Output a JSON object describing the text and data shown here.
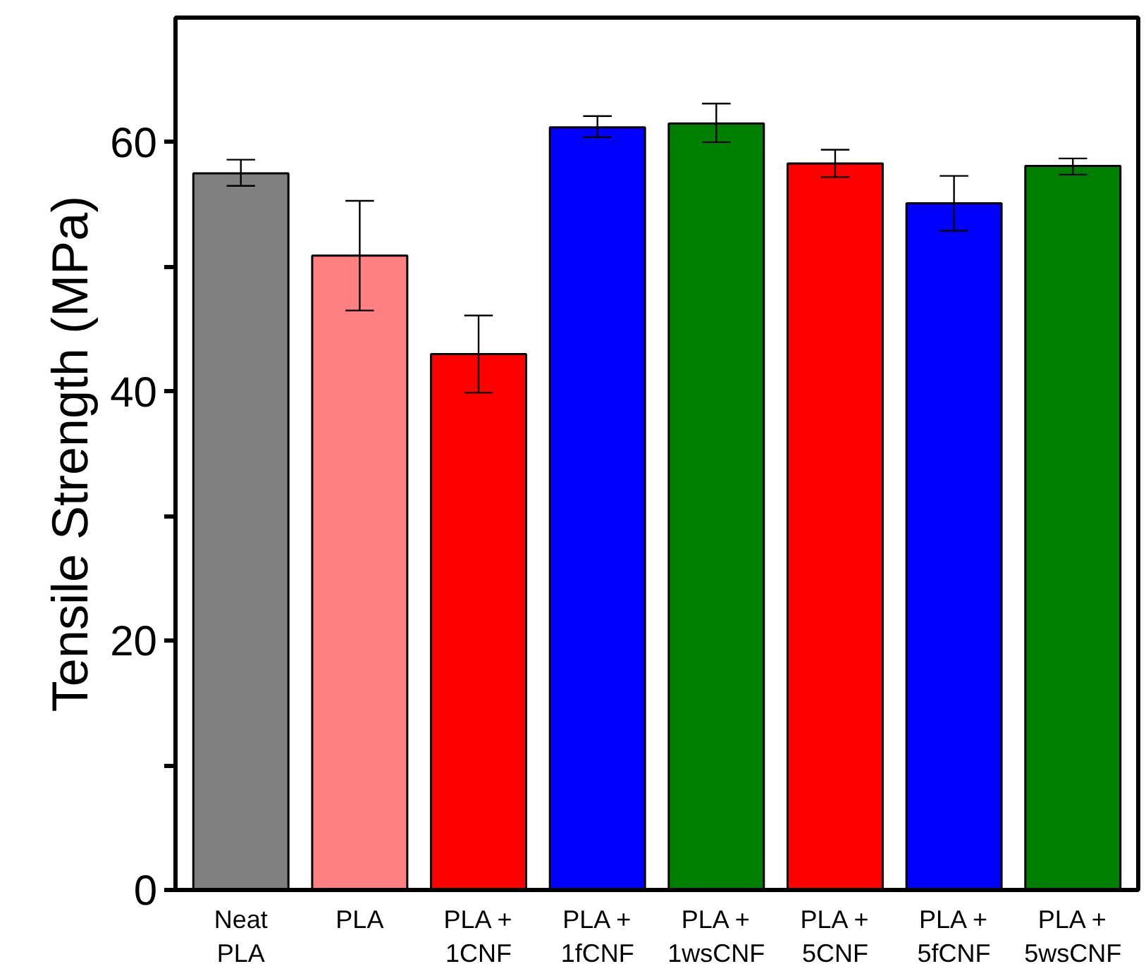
{
  "chart_data": {
    "type": "bar",
    "ylabel": "Tensile Strength (MPa)",
    "categories": [
      "Neat\nPLA",
      "PLA",
      "PLA +\n1CNF",
      "PLA +\n1fCNF",
      "PLA +\n1wsCNF",
      "PLA +\n5CNF",
      "PLA +\n5fCNF",
      "PLA +\n5wsCNF"
    ],
    "values": [
      57.5,
      50.9,
      43.0,
      61.2,
      61.5,
      58.3,
      55.1,
      58.1
    ],
    "colors": [
      "#808080",
      "#ff8080",
      "#ff0000",
      "#0000ff",
      "#008000",
      "#ff0000",
      "#0000ff",
      "#008000"
    ],
    "errors": [
      [
        56.5,
        58.6
      ],
      [
        46.5,
        55.3
      ],
      [
        39.9,
        46.1
      ],
      [
        60.4,
        62.1
      ],
      [
        60.0,
        63.1
      ],
      [
        57.2,
        59.4
      ],
      [
        52.9,
        57.3
      ],
      [
        57.4,
        58.7
      ]
    ],
    "ylim": [
      0,
      70
    ],
    "yticks": [
      0,
      {
        "value": 10,
        "label": null
      },
      20,
      {
        "value": 30,
        "label": null
      },
      40,
      {
        "value": 50,
        "label": null
      },
      60
    ],
    "grid": false
  }
}
